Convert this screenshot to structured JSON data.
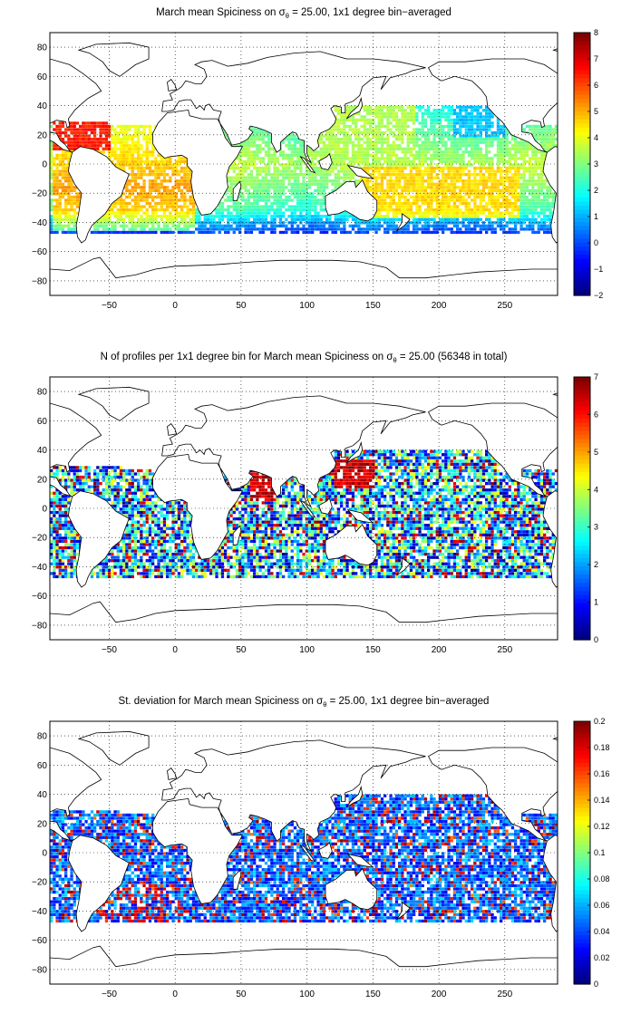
{
  "panels": [
    {
      "id": "spice",
      "title": "March mean Spiciness on σ",
      "title_sub": "θ",
      "title_rest": " = 25.00, 1x1 degree bin−averaged",
      "colorbar": {
        "min": -2,
        "max": 8,
        "ticks": [
          "8",
          "7",
          "6",
          "5",
          "4",
          "3",
          "2",
          "1",
          "0",
          "−1",
          "−2"
        ]
      }
    },
    {
      "id": "count",
      "title": "N of profiles per 1x1 degree bin for March mean Spiciness on σ",
      "title_sub": "θ",
      "title_rest": " = 25.00 (56348 in total)",
      "colorbar": {
        "min": 0,
        "max": 7,
        "ticks": [
          "7",
          "6",
          "5",
          "4",
          "3",
          "2",
          "1",
          "0"
        ]
      }
    },
    {
      "id": "std",
      "title": "St. deviation for March mean Spiciness on σ",
      "title_sub": "θ",
      "title_rest": " = 25.00, 1x1 degree bin−averaged",
      "colorbar": {
        "min": 0,
        "max": 0.2,
        "ticks": [
          "0.2",
          "0.18",
          "0.16",
          "0.14",
          "0.12",
          "0.1",
          "0.08",
          "0.06",
          "0.04",
          "0.02",
          "0"
        ]
      }
    }
  ],
  "axes": {
    "lon_range": [
      -95,
      290
    ],
    "lat_range": [
      -90,
      90
    ],
    "x_ticks": [
      "−50",
      "0",
      "50",
      "100",
      "150",
      "200",
      "250"
    ],
    "y_ticks": [
      "80",
      "60",
      "40",
      "20",
      "0",
      "−20",
      "−40",
      "−60",
      "−80"
    ],
    "grid": "dotted"
  },
  "colormap": "jet"
}
